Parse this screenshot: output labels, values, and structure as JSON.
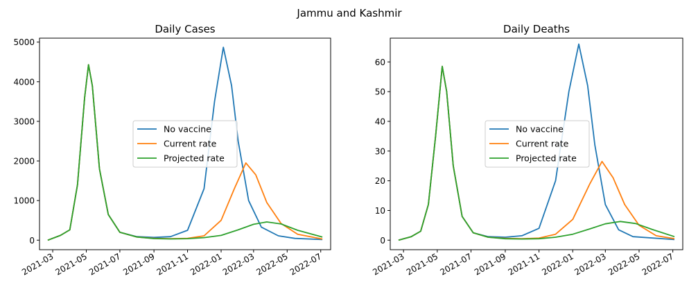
{
  "figure": {
    "suptitle": "Jammu and Kashmir"
  },
  "colors": {
    "no_vaccine": "#1f77b4",
    "current_rate": "#ff7f0e",
    "projected_rate": "#2ca02c"
  },
  "chart_data": [
    {
      "type": "line",
      "title": "Daily Cases",
      "xlabel": "",
      "ylabel": "",
      "x_ticks": [
        "2021-03",
        "2021-05",
        "2021-07",
        "2021-09",
        "2021-11",
        "2022-01",
        "2022-03",
        "2022-05",
        "2022-07"
      ],
      "xlim": [
        "2021-02-05",
        "2022-07-19"
      ],
      "ylim": [
        -240,
        5100
      ],
      "y_ticks": [
        0,
        1000,
        2000,
        3000,
        4000,
        5000
      ],
      "legend": "center",
      "series": [
        {
          "name": "No vaccine",
          "color": "#1f77b4",
          "points": [
            [
              "2021-02-20",
              0
            ],
            [
              "2021-03-15",
              120
            ],
            [
              "2021-04-01",
              260
            ],
            [
              "2021-04-15",
              1400
            ],
            [
              "2021-04-28",
              3600
            ],
            [
              "2021-05-05",
              4430
            ],
            [
              "2021-05-12",
              3900
            ],
            [
              "2021-05-25",
              1800
            ],
            [
              "2021-06-10",
              650
            ],
            [
              "2021-07-01",
              200
            ],
            [
              "2021-08-01",
              90
            ],
            [
              "2021-09-01",
              70
            ],
            [
              "2021-10-01",
              90
            ],
            [
              "2021-11-01",
              250
            ],
            [
              "2021-12-01",
              1300
            ],
            [
              "2021-12-20",
              3500
            ],
            [
              "2022-01-05",
              4870
            ],
            [
              "2022-01-20",
              3900
            ],
            [
              "2022-02-01",
              2500
            ],
            [
              "2022-02-20",
              1000
            ],
            [
              "2022-03-15",
              330
            ],
            [
              "2022-04-15",
              110
            ],
            [
              "2022-05-15",
              45
            ],
            [
              "2022-07-04",
              15
            ]
          ]
        },
        {
          "name": "Current rate",
          "color": "#ff7f0e",
          "points": [
            [
              "2021-02-20",
              0
            ],
            [
              "2021-03-15",
              120
            ],
            [
              "2021-04-01",
              260
            ],
            [
              "2021-04-15",
              1400
            ],
            [
              "2021-04-28",
              3600
            ],
            [
              "2021-05-05",
              4430
            ],
            [
              "2021-05-12",
              3900
            ],
            [
              "2021-05-25",
              1800
            ],
            [
              "2021-06-10",
              650
            ],
            [
              "2021-07-01",
              200
            ],
            [
              "2021-08-01",
              80
            ],
            [
              "2021-09-01",
              45
            ],
            [
              "2021-10-01",
              38
            ],
            [
              "2021-11-01",
              45
            ],
            [
              "2021-12-01",
              110
            ],
            [
              "2022-01-01",
              500
            ],
            [
              "2022-01-25",
              1300
            ],
            [
              "2022-02-15",
              1950
            ],
            [
              "2022-03-05",
              1650
            ],
            [
              "2022-03-25",
              950
            ],
            [
              "2022-04-20",
              420
            ],
            [
              "2022-05-20",
              150
            ],
            [
              "2022-07-04",
              30
            ]
          ]
        },
        {
          "name": "Projected rate",
          "color": "#2ca02c",
          "points": [
            [
              "2021-02-20",
              0
            ],
            [
              "2021-03-15",
              120
            ],
            [
              "2021-04-01",
              260
            ],
            [
              "2021-04-15",
              1400
            ],
            [
              "2021-04-28",
              3600
            ],
            [
              "2021-05-05",
              4430
            ],
            [
              "2021-05-12",
              3900
            ],
            [
              "2021-05-25",
              1800
            ],
            [
              "2021-06-10",
              650
            ],
            [
              "2021-07-01",
              200
            ],
            [
              "2021-08-01",
              80
            ],
            [
              "2021-09-01",
              40
            ],
            [
              "2021-10-01",
              32
            ],
            [
              "2021-11-01",
              38
            ],
            [
              "2021-12-01",
              65
            ],
            [
              "2022-01-01",
              120
            ],
            [
              "2022-02-01",
              260
            ],
            [
              "2022-03-01",
              400
            ],
            [
              "2022-03-25",
              460
            ],
            [
              "2022-04-20",
              410
            ],
            [
              "2022-05-20",
              250
            ],
            [
              "2022-07-04",
              80
            ]
          ]
        }
      ]
    },
    {
      "type": "line",
      "title": "Daily Deaths",
      "xlabel": "",
      "ylabel": "",
      "x_ticks": [
        "2021-03",
        "2021-05",
        "2021-07",
        "2021-09",
        "2021-11",
        "2022-01",
        "2022-03",
        "2022-05",
        "2022-07"
      ],
      "xlim": [
        "2021-02-05",
        "2022-07-19"
      ],
      "ylim": [
        -3.2,
        68
      ],
      "y_ticks": [
        0,
        10,
        20,
        30,
        40,
        50,
        60
      ],
      "legend": "center",
      "series": [
        {
          "name": "No vaccine",
          "color": "#1f77b4",
          "points": [
            [
              "2021-02-20",
              0
            ],
            [
              "2021-03-15",
              1.2
            ],
            [
              "2021-04-01",
              3
            ],
            [
              "2021-04-15",
              12
            ],
            [
              "2021-04-28",
              35
            ],
            [
              "2021-05-10",
              58.5
            ],
            [
              "2021-05-18",
              50
            ],
            [
              "2021-05-30",
              25
            ],
            [
              "2021-06-15",
              8
            ],
            [
              "2021-07-05",
              2.5
            ],
            [
              "2021-08-01",
              1.2
            ],
            [
              "2021-09-01",
              1
            ],
            [
              "2021-10-01",
              1.5
            ],
            [
              "2021-11-01",
              4
            ],
            [
              "2021-12-01",
              20
            ],
            [
              "2021-12-25",
              50
            ],
            [
              "2022-01-12",
              66
            ],
            [
              "2022-01-28",
              52
            ],
            [
              "2022-02-10",
              32
            ],
            [
              "2022-03-01",
              12
            ],
            [
              "2022-03-25",
              3.5
            ],
            [
              "2022-04-20",
              1.2
            ],
            [
              "2022-07-04",
              0.2
            ]
          ]
        },
        {
          "name": "Current rate",
          "color": "#ff7f0e",
          "points": [
            [
              "2021-02-20",
              0
            ],
            [
              "2021-03-15",
              1.2
            ],
            [
              "2021-04-01",
              3
            ],
            [
              "2021-04-15",
              12
            ],
            [
              "2021-04-28",
              35
            ],
            [
              "2021-05-10",
              58.5
            ],
            [
              "2021-05-18",
              50
            ],
            [
              "2021-05-30",
              25
            ],
            [
              "2021-06-15",
              8
            ],
            [
              "2021-07-05",
              2.5
            ],
            [
              "2021-08-01",
              1
            ],
            [
              "2021-09-01",
              0.6
            ],
            [
              "2021-10-01",
              0.5
            ],
            [
              "2021-11-01",
              0.7
            ],
            [
              "2021-12-01",
              2
            ],
            [
              "2022-01-01",
              7
            ],
            [
              "2022-02-01",
              19
            ],
            [
              "2022-02-23",
              26.5
            ],
            [
              "2022-03-15",
              21
            ],
            [
              "2022-04-05",
              12
            ],
            [
              "2022-05-01",
              5
            ],
            [
              "2022-06-01",
              1.5
            ],
            [
              "2022-07-04",
              0.5
            ]
          ]
        },
        {
          "name": "Projected rate",
          "color": "#2ca02c",
          "points": [
            [
              "2021-02-20",
              0
            ],
            [
              "2021-03-15",
              1.2
            ],
            [
              "2021-04-01",
              3
            ],
            [
              "2021-04-15",
              12
            ],
            [
              "2021-04-28",
              35
            ],
            [
              "2021-05-10",
              58.5
            ],
            [
              "2021-05-18",
              50
            ],
            [
              "2021-05-30",
              25
            ],
            [
              "2021-06-15",
              8
            ],
            [
              "2021-07-05",
              2.5
            ],
            [
              "2021-08-01",
              1
            ],
            [
              "2021-09-01",
              0.5
            ],
            [
              "2021-10-01",
              0.4
            ],
            [
              "2021-11-01",
              0.5
            ],
            [
              "2021-12-01",
              1
            ],
            [
              "2022-01-01",
              2
            ],
            [
              "2022-02-01",
              3.8
            ],
            [
              "2022-03-01",
              5.5
            ],
            [
              "2022-03-28",
              6.3
            ],
            [
              "2022-04-25",
              5.6
            ],
            [
              "2022-05-25",
              3.6
            ],
            [
              "2022-07-04",
              1.2
            ]
          ]
        }
      ]
    }
  ]
}
